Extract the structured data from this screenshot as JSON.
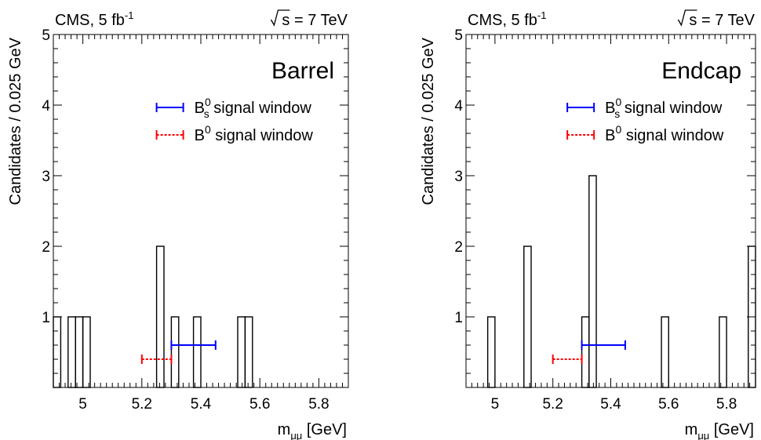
{
  "chart_data": [
    {
      "type": "histogram",
      "panel_label": "Barrel",
      "header_left": "CMS, 5 fb",
      "header_left_sup": "-1",
      "header_right": "s = 7 TeV",
      "xlabel": "m",
      "xlabel_sub": "μμ",
      "xlabel_unit": " [GeV]",
      "ylabel": "Candidates / 0.025 GeV",
      "xlim": [
        4.9,
        5.9
      ],
      "ylim": [
        0,
        5
      ],
      "xticks": [
        "5",
        "5.2",
        "5.4",
        "5.6",
        "5.8"
      ],
      "yticks": [
        "1",
        "2",
        "3",
        "4",
        "5"
      ],
      "bin_width": 0.025,
      "bins": [
        {
          "low": 4.9,
          "count": 1
        },
        {
          "low": 4.95,
          "count": 1
        },
        {
          "low": 4.975,
          "count": 1
        },
        {
          "low": 5.0,
          "count": 1
        },
        {
          "low": 5.25,
          "count": 2
        },
        {
          "low": 5.3,
          "count": 1
        },
        {
          "low": 5.375,
          "count": 1
        },
        {
          "low": 5.525,
          "count": 1
        },
        {
          "low": 5.55,
          "count": 1
        }
      ],
      "windows": [
        {
          "name": "B",
          "name_sub": "s",
          "name_sup": "0",
          "label": " signal window",
          "x": [
            5.3,
            5.45
          ],
          "y": 0.6,
          "style": "solid",
          "color": "#0000ff"
        },
        {
          "name": "B",
          "name_sub": "",
          "name_sup": "0",
          "label": " signal window",
          "x": [
            5.2,
            5.3
          ],
          "y": 0.4,
          "style": "dotted",
          "color": "#ff0000"
        }
      ]
    },
    {
      "type": "histogram",
      "panel_label": "Endcap",
      "header_left": "CMS, 5 fb",
      "header_left_sup": "-1",
      "header_right": "s = 7 TeV",
      "xlabel": "m",
      "xlabel_sub": "μμ",
      "xlabel_unit": " [GeV]",
      "ylabel": "Candidates / 0.025 GeV",
      "xlim": [
        4.9,
        5.9
      ],
      "ylim": [
        0,
        5
      ],
      "xticks": [
        "5",
        "5.2",
        "5.4",
        "5.6",
        "5.8"
      ],
      "yticks": [
        "1",
        "2",
        "3",
        "4",
        "5"
      ],
      "bin_width": 0.025,
      "bins": [
        {
          "low": 4.975,
          "count": 1
        },
        {
          "low": 5.1,
          "count": 2
        },
        {
          "low": 5.3,
          "count": 1
        },
        {
          "low": 5.325,
          "count": 3
        },
        {
          "low": 5.575,
          "count": 1
        },
        {
          "low": 5.775,
          "count": 1
        },
        {
          "low": 5.875,
          "count": 2
        }
      ],
      "windows": [
        {
          "name": "B",
          "name_sub": "s",
          "name_sup": "0",
          "label": " signal window",
          "x": [
            5.3,
            5.45
          ],
          "y": 0.6,
          "style": "solid",
          "color": "#0000ff"
        },
        {
          "name": "B",
          "name_sub": "",
          "name_sup": "0",
          "label": " signal window",
          "x": [
            5.2,
            5.3
          ],
          "y": 0.4,
          "style": "dotted",
          "color": "#ff0000"
        }
      ]
    }
  ]
}
